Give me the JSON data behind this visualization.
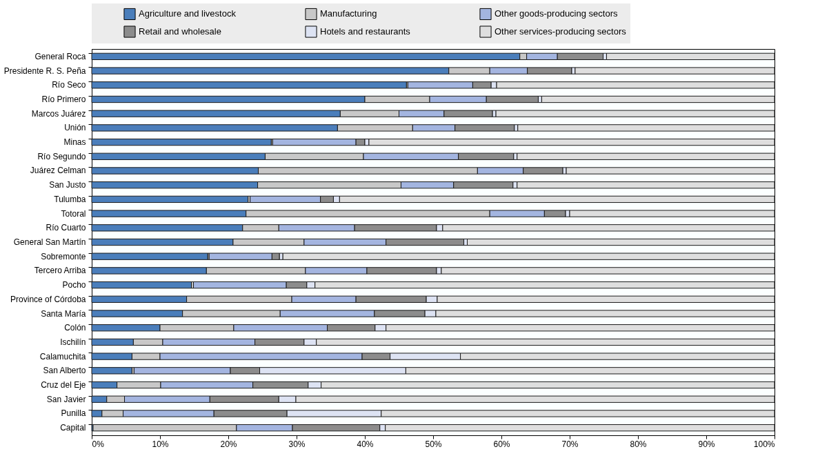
{
  "chart_data": {
    "type": "bar",
    "orientation": "horizontal",
    "stacked": true,
    "legend": "top",
    "categories": [
      "General Roca",
      "Presidente R. S. Peña",
      "Río Seco",
      "Río Primero",
      "Marcos Juárez",
      "Unión",
      "Minas",
      "Río Segundo",
      "Juárez Celman",
      "San Justo",
      "Tulumba",
      "Totoral",
      "Río Cuarto",
      "General San Martín",
      "Sobremonte",
      "Tercero Arriba",
      "Pocho",
      "Province of Córdoba",
      "Santa María",
      "Colón",
      "Ischilín",
      "Calamuchita",
      "San Alberto",
      "Cruz del Eje",
      "San Javier",
      "Punilla",
      "Capital"
    ],
    "xlim": [
      0,
      100
    ],
    "xticks": [
      {
        "value": 0,
        "label": "0%"
      },
      {
        "value": 10,
        "label": "10%"
      },
      {
        "value": 20,
        "label": "20%"
      },
      {
        "value": 30,
        "label": "30%"
      },
      {
        "value": 40,
        "label": "40%"
      },
      {
        "value": 50,
        "label": "50%"
      },
      {
        "value": 60,
        "label": "60%"
      },
      {
        "value": 70,
        "label": "70%"
      },
      {
        "value": 80,
        "label": "80%"
      },
      {
        "value": 90,
        "label": "90%"
      },
      {
        "value": 100,
        "label": "100%"
      }
    ],
    "series": [
      {
        "name": "Agriculture and livestock",
        "color": "#4a7ebb",
        "values": [
          62.7,
          52.3,
          46.1,
          40.0,
          36.4,
          36.0,
          26.3,
          25.4,
          24.4,
          24.3,
          22.9,
          22.6,
          22.1,
          20.7,
          17.0,
          16.8,
          14.6,
          13.9,
          13.3,
          10.0,
          6.1,
          5.9,
          5.9,
          3.7,
          2.2,
          1.5,
          0.2
        ]
      },
      {
        "name": "Manufacturing",
        "color": "#c8c8c8",
        "values": [
          1.0,
          6.0,
          0.2,
          9.5,
          8.6,
          11.0,
          0.2,
          14.4,
          32.1,
          21.0,
          0.3,
          35.7,
          5.3,
          10.4,
          0.2,
          14.5,
          0.3,
          15.4,
          14.3,
          10.8,
          4.3,
          4.1,
          0.3,
          6.4,
          2.6,
          3.1,
          21.0
        ]
      },
      {
        "name": "Other goods-producing sectors",
        "color": "#a3b5e0",
        "values": [
          4.5,
          5.5,
          9.5,
          8.3,
          6.6,
          6.2,
          12.2,
          13.9,
          6.7,
          7.7,
          10.3,
          8.0,
          11.1,
          12.0,
          9.2,
          9.0,
          13.6,
          9.4,
          13.8,
          13.7,
          13.5,
          29.6,
          14.1,
          13.5,
          12.5,
          13.3,
          8.2
        ]
      },
      {
        "name": "Retail and wholesale",
        "color": "#8c8c8c",
        "values": [
          6.7,
          6.5,
          2.7,
          7.6,
          7.1,
          8.7,
          1.3,
          8.1,
          5.8,
          8.7,
          1.9,
          3.1,
          12.0,
          11.4,
          1.1,
          10.2,
          3.0,
          10.3,
          7.4,
          7.0,
          7.2,
          4.1,
          4.3,
          8.1,
          10.1,
          10.7,
          12.8
        ]
      },
      {
        "name": "Hotels and restaurants",
        "color": "#dde3f3",
        "values": [
          0.5,
          0.5,
          0.8,
          0.5,
          0.5,
          0.5,
          0.6,
          0.5,
          0.5,
          0.6,
          0.9,
          0.6,
          0.9,
          0.5,
          0.5,
          0.7,
          1.2,
          1.6,
          1.6,
          1.6,
          1.8,
          10.3,
          21.4,
          1.9,
          2.5,
          13.8,
          0.8
        ]
      },
      {
        "name": "Other services-producing sectors",
        "color": "#dedede",
        "values": [
          24.6,
          29.2,
          40.7,
          34.1,
          40.8,
          37.6,
          59.4,
          37.7,
          30.5,
          37.7,
          63.7,
          30.0,
          48.6,
          45.0,
          72.0,
          48.8,
          67.3,
          49.4,
          49.6,
          56.9,
          67.1,
          46.0,
          54.0,
          66.4,
          70.1,
          57.6,
          57.0
        ]
      }
    ]
  }
}
